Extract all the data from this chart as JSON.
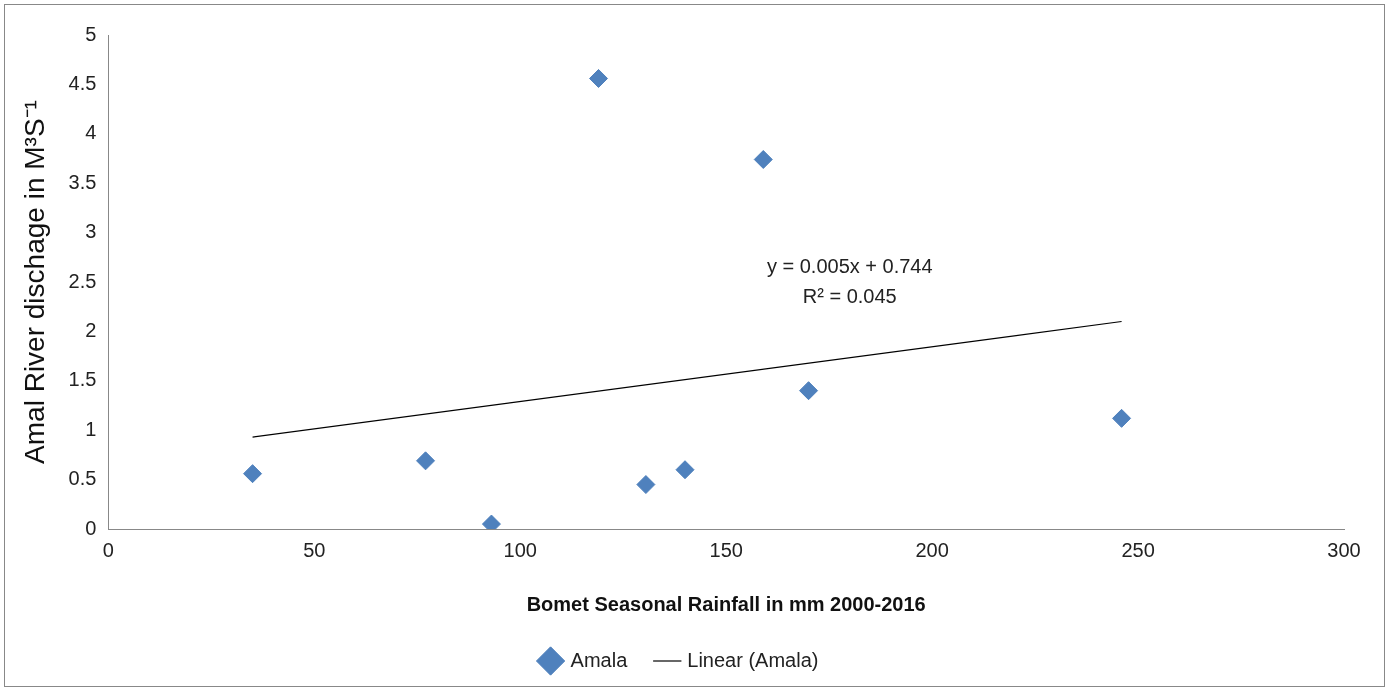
{
  "chart_data": {
    "type": "scatter",
    "xlabel": "Bomet Seasonal Rainfall in mm 2000-2016",
    "ylabel": "Amal River dischage in M³S⁻¹",
    "xlim": [
      0,
      300
    ],
    "xticks": [
      0,
      50,
      100,
      150,
      200,
      250,
      300
    ],
    "ylim": [
      0,
      5
    ],
    "yticks": [
      0,
      0.5,
      1,
      1.5,
      2,
      2.5,
      3,
      3.5,
      4,
      4.5,
      5
    ],
    "grid": false,
    "legend": "bottom",
    "marker": "diamond",
    "series": [
      {
        "name": "Amala",
        "color": "#4f81bd",
        "x": [
          35,
          77,
          93,
          119,
          130.5,
          140,
          159,
          170,
          246
        ],
        "values": [
          0.56,
          0.69,
          0.05,
          4.56,
          0.45,
          0.6,
          3.74,
          1.4,
          1.12
        ]
      },
      {
        "name": "Linear (Amala)",
        "type": "line",
        "color": "#000000",
        "marker": "none",
        "x": [
          35,
          246
        ],
        "values": [
          0.93,
          2.1
        ]
      }
    ],
    "annotations": [
      "y = 0.005x + 0.744",
      "R² = 0.045"
    ]
  }
}
